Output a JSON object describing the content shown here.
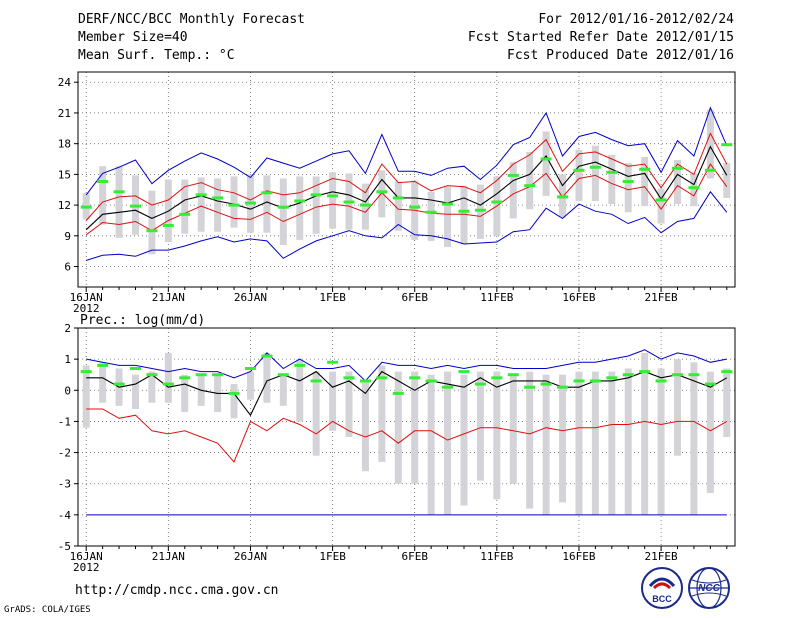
{
  "header": {
    "title": "DERF/NCC/BCC Monthly Forecast",
    "member_size": "Member Size=40",
    "variable": "Mean Surf. Temp.: °C",
    "period": "For 2012/01/16-2012/02/24",
    "started": "Fcst Started Refer Date 2012/01/15",
    "produced": "Fcst Produced Date 2012/01/16"
  },
  "footer": {
    "url": "http://cmdp.ncc.cma.gov.cn",
    "grads": "GrADS: COLA/IGES",
    "logo_bcc": "BCC",
    "logo_ncc": "NCC"
  },
  "colors": {
    "envelope": "#0000cc",
    "spread": "#dd1111",
    "mean": "#000000",
    "obs": "#33ee33",
    "box": "#d4d4d8",
    "grid": "#666666"
  },
  "chart_data": [
    {
      "type": "line",
      "title": "Mean Surf. Temp.: °C",
      "ylim": [
        4,
        25
      ],
      "yticks": [
        6,
        9,
        12,
        15,
        18,
        21,
        24
      ],
      "x_tick_labels": [
        "16JAN",
        "21JAN",
        "26JAN",
        "1FEB",
        "6FEB",
        "11FEB",
        "16FEB",
        "21FEB"
      ],
      "x_year_label": "2012",
      "days": 40,
      "series": [
        {
          "name": "max",
          "values": [
            6.6,
            7.1,
            7.2,
            7.0,
            7.6,
            7.6,
            8.0,
            8.5,
            8.9,
            8.4,
            8.7,
            8.5,
            6.8,
            7.7,
            8.5,
            9.0,
            9.5,
            9.0,
            8.8,
            10.1,
            9.1,
            9.0,
            8.7,
            8.2,
            8.3,
            8.4,
            9.4,
            9.6,
            11.7,
            10.7,
            12.1,
            11.4,
            11.1,
            10.2,
            10.8,
            9.3,
            10.4,
            10.7,
            13.3,
            11.3
          ]
        },
        {
          "name": "upper",
          "values": [
            13.0,
            15.1,
            15.7,
            16.4,
            14.1,
            15.4,
            16.3,
            17.1,
            16.5,
            15.7,
            14.7,
            16.6,
            16.1,
            15.6,
            16.3,
            17.0,
            17.3,
            15.1,
            18.9,
            15.3,
            15.3,
            14.9,
            15.6,
            15.8,
            14.5,
            15.9,
            17.9,
            18.6,
            21.0,
            16.8,
            18.7,
            19.1,
            18.4,
            17.8,
            18.0,
            15.2,
            18.3,
            16.8,
            21.5,
            17.8
          ]
        },
        {
          "name": "spread_hi",
          "values": [
            10.5,
            12.3,
            12.8,
            12.9,
            12.0,
            12.5,
            13.8,
            14.2,
            13.5,
            13.2,
            12.5,
            13.4,
            13.0,
            13.2,
            13.9,
            14.6,
            14.3,
            13.2,
            16.0,
            14.2,
            14.3,
            13.4,
            13.9,
            13.8,
            13.2,
            14.4,
            16.0,
            16.9,
            18.4,
            15.3,
            17.0,
            17.2,
            16.5,
            15.8,
            16.0,
            13.7,
            16.0,
            15.0,
            19.0,
            16.0
          ]
        },
        {
          "name": "mean",
          "values": [
            9.6,
            11.1,
            11.3,
            11.5,
            10.7,
            11.4,
            12.5,
            12.9,
            12.4,
            12.1,
            11.6,
            12.3,
            11.7,
            12.2,
            12.9,
            13.3,
            13.0,
            12.3,
            14.5,
            12.7,
            12.7,
            12.5,
            12.2,
            12.7,
            12.0,
            13.1,
            14.4,
            15.0,
            16.8,
            13.9,
            15.8,
            16.2,
            15.5,
            14.8,
            15.1,
            12.6,
            15.0,
            14.0,
            17.7,
            14.9
          ]
        },
        {
          "name": "spread_lo",
          "values": [
            9.1,
            10.3,
            10.1,
            10.4,
            9.5,
            10.5,
            11.2,
            11.9,
            11.3,
            10.7,
            10.6,
            11.3,
            10.4,
            11.1,
            11.8,
            12.1,
            11.9,
            11.3,
            13.2,
            11.6,
            11.5,
            11.2,
            11.1,
            11.1,
            10.9,
            11.9,
            13.1,
            13.8,
            15.1,
            12.8,
            14.6,
            14.9,
            14.1,
            13.5,
            13.8,
            11.6,
            13.9,
            12.9,
            16.0,
            13.8
          ]
        },
        {
          "name": "obs",
          "values": [
            11.8,
            14.3,
            13.3,
            11.9,
            9.5,
            10.0,
            11.1,
            13.0,
            12.7,
            12.0,
            12.2,
            13.2,
            11.8,
            12.4,
            13.0,
            12.9,
            12.3,
            12.0,
            13.3,
            12.7,
            11.8,
            11.3,
            12.1,
            11.4,
            11.5,
            12.3,
            14.9,
            13.9,
            16.5,
            12.8,
            15.4,
            15.7,
            15.2,
            14.3,
            15.5,
            12.5,
            15.6,
            13.7,
            15.4,
            17.9
          ]
        },
        {
          "name": "box_top",
          "values": [
            13.2,
            15.8,
            15.8,
            14.9,
            13.4,
            14.5,
            14.5,
            14.7,
            14.6,
            14.8,
            15.0,
            14.9,
            14.6,
            14.8,
            14.8,
            15.2,
            15.1,
            14.1,
            15.4,
            14.3,
            14.4,
            13.3,
            13.8,
            13.9,
            14.0,
            14.8,
            16.2,
            17.2,
            19.2,
            15.0,
            17.4,
            17.8,
            16.9,
            16.1,
            16.7,
            13.6,
            16.4,
            15.1,
            21.3,
            16.1
          ]
        },
        {
          "name": "box_bottom",
          "values": [
            10.6,
            10.1,
            8.8,
            9.1,
            7.2,
            8.4,
            9.2,
            9.4,
            9.4,
            9.8,
            9.3,
            9.3,
            8.1,
            8.6,
            9.2,
            9.7,
            9.6,
            9.6,
            10.8,
            9.5,
            8.6,
            8.5,
            7.9,
            8.2,
            8.7,
            9.0,
            10.7,
            11.6,
            12.9,
            10.8,
            12.4,
            12.4,
            12.1,
            11.3,
            11.9,
            10.2,
            12.1,
            11.9,
            14.6,
            12.7
          ]
        }
      ]
    },
    {
      "type": "line",
      "title": "Prec.: log(mm/d)",
      "ylim": [
        -5,
        2
      ],
      "yticks": [
        -5,
        -4,
        -3,
        -2,
        -1,
        0,
        1,
        2
      ],
      "x_tick_labels": [
        "16JAN",
        "21JAN",
        "26JAN",
        "1FEB",
        "6FEB",
        "11FEB",
        "16FEB",
        "21FEB"
      ],
      "x_year_label": "2012",
      "days": 40,
      "series": [
        {
          "name": "upper",
          "values": [
            1.0,
            0.9,
            0.8,
            0.8,
            0.7,
            0.6,
            0.7,
            0.6,
            0.6,
            0.4,
            0.6,
            1.2,
            0.7,
            1.0,
            0.7,
            0.7,
            0.8,
            0.3,
            0.9,
            0.8,
            0.8,
            0.7,
            0.8,
            0.7,
            0.8,
            0.8,
            0.7,
            0.7,
            0.7,
            0.8,
            0.9,
            0.9,
            1.0,
            1.1,
            1.3,
            1.0,
            1.2,
            1.1,
            0.9,
            1.0
          ]
        },
        {
          "name": "mean",
          "values": [
            0.4,
            0.4,
            0.1,
            0.2,
            0.5,
            0.1,
            0.2,
            0.0,
            -0.1,
            -0.1,
            -0.8,
            0.3,
            0.5,
            0.3,
            0.6,
            0.1,
            0.3,
            -0.1,
            0.6,
            0.3,
            0.0,
            0.3,
            0.2,
            0.1,
            0.4,
            0.1,
            0.3,
            0.3,
            0.3,
            0.1,
            0.1,
            0.3,
            0.3,
            0.4,
            0.6,
            0.4,
            0.5,
            0.3,
            0.1,
            0.4
          ]
        },
        {
          "name": "lower",
          "values": [
            -0.6,
            -0.6,
            -0.9,
            -0.8,
            -1.3,
            -1.4,
            -1.3,
            -1.5,
            -1.7,
            -2.3,
            -1.0,
            -1.3,
            -0.9,
            -1.1,
            -1.4,
            -1.0,
            -1.3,
            -1.5,
            -1.3,
            -1.7,
            -1.3,
            -1.3,
            -1.6,
            -1.4,
            -1.2,
            -1.2,
            -1.3,
            -1.4,
            -1.2,
            -1.3,
            -1.2,
            -1.2,
            -1.1,
            -1.1,
            -1.0,
            -1.1,
            -1.0,
            -1.0,
            -1.3,
            -1.0
          ]
        },
        {
          "name": "floor",
          "values": [
            -4,
            -4,
            -4,
            -4,
            -4,
            -4,
            -4,
            -4,
            -4,
            -4,
            -4,
            -4,
            -4,
            -4,
            -4,
            -4,
            -4,
            -4,
            -4,
            -4,
            -4,
            -4,
            -4,
            -4,
            -4,
            -4,
            -4,
            -4,
            -4,
            -4,
            -4,
            -4,
            -4,
            -4,
            -4,
            -4,
            -4,
            -4,
            -4,
            -4
          ]
        },
        {
          "name": "obs",
          "values": [
            0.6,
            0.8,
            0.2,
            0.7,
            0.5,
            0.2,
            0.4,
            0.5,
            0.5,
            -0.1,
            0.7,
            1.1,
            0.5,
            0.8,
            0.3,
            0.9,
            0.4,
            0.3,
            0.4,
            -0.1,
            0.4,
            0.3,
            0.1,
            0.6,
            0.2,
            0.4,
            0.5,
            0.1,
            0.2,
            0.1,
            0.3,
            0.3,
            0.4,
            0.5,
            0.6,
            0.3,
            0.5,
            0.5,
            0.2,
            0.6
          ]
        },
        {
          "name": "box_top",
          "values": [
            0.8,
            0.9,
            0.7,
            0.5,
            0.6,
            1.2,
            0.5,
            0.5,
            0.5,
            0.2,
            0.6,
            1.2,
            0.5,
            1.0,
            0.6,
            0.6,
            0.6,
            0.3,
            0.8,
            0.6,
            0.6,
            0.5,
            0.6,
            0.5,
            0.6,
            0.6,
            0.5,
            0.6,
            0.5,
            0.5,
            0.6,
            0.6,
            0.6,
            0.7,
            1.2,
            0.7,
            1.0,
            0.9,
            0.6,
            0.7
          ]
        },
        {
          "name": "box_bottom",
          "values": [
            -1.2,
            -0.4,
            -0.5,
            -0.6,
            -0.4,
            -0.4,
            -0.7,
            -0.5,
            -0.7,
            -0.9,
            -0.3,
            -0.4,
            -0.5,
            -1.0,
            -2.1,
            -1.3,
            -1.5,
            -2.6,
            -2.3,
            -3.0,
            -3.0,
            -4.0,
            -4.0,
            -3.7,
            -2.9,
            -3.5,
            -3.0,
            -3.8,
            -4.0,
            -3.6,
            -4.0,
            -4.0,
            -4.0,
            -4.0,
            -4.0,
            -4.0,
            -2.1,
            -4.0,
            -3.3,
            -1.5
          ]
        }
      ]
    }
  ]
}
